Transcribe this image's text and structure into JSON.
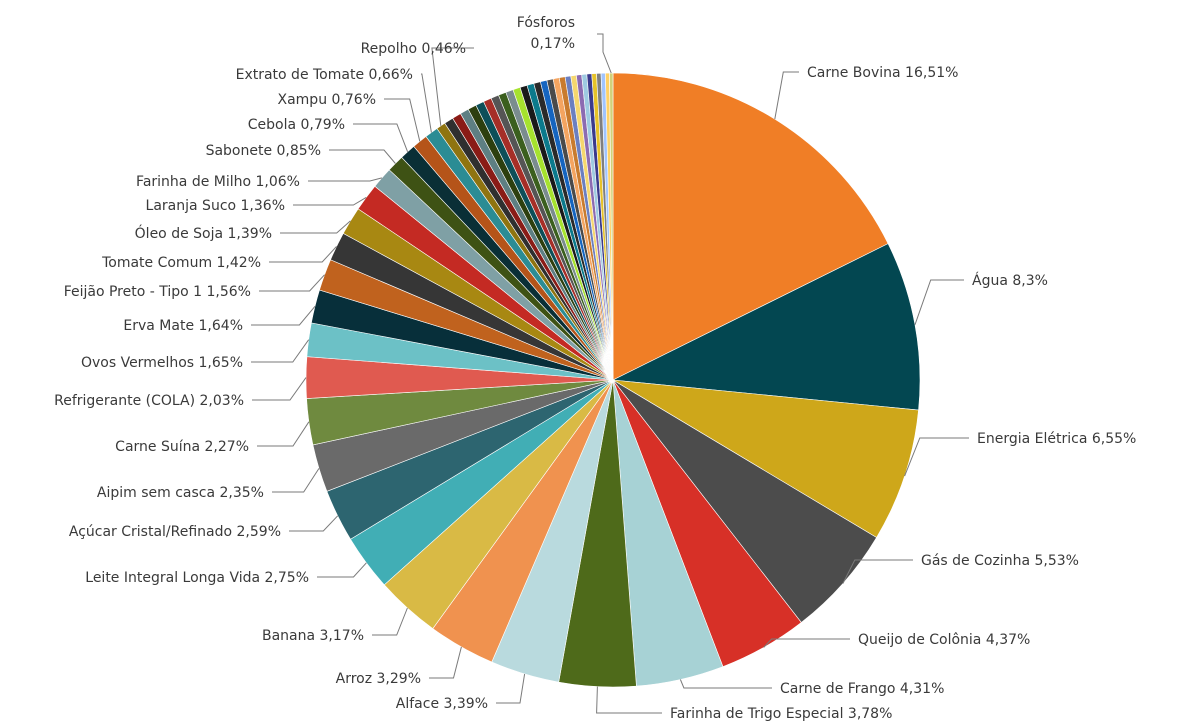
{
  "chart_data": {
    "type": "pie",
    "slices": [
      {
        "label": "Carne Bovina 16,51%",
        "value": 16.51,
        "color": "#F07E26"
      },
      {
        "label": "Água 8,3%",
        "value": 8.3,
        "color": "#034751"
      },
      {
        "label": "Energia Elétrica 6,55%",
        "value": 6.55,
        "color": "#CEA71A"
      },
      {
        "label": "Gás de Cozinha 5,53%",
        "value": 5.53,
        "color": "#4C4C4C"
      },
      {
        "label": "Queijo de Colônia 4,37%",
        "value": 4.37,
        "color": "#D73027"
      },
      {
        "label": "Carne de Frango 4,31%",
        "value": 4.31,
        "color": "#A7D2D5"
      },
      {
        "label": "Farinha de Trigo Especial 3,78%",
        "value": 3.78,
        "color": "#4E6A1A"
      },
      {
        "label": "Alface 3,39%",
        "value": 3.39,
        "color": "#B9DADE"
      },
      {
        "label": "Arroz 3,29%",
        "value": 3.29,
        "color": "#F0924F"
      },
      {
        "label": "Banana 3,17%",
        "value": 3.17,
        "color": "#D9BA45"
      },
      {
        "label": "Leite Integral Longa Vida 2,75%",
        "value": 2.75,
        "color": "#41AEB5"
      },
      {
        "label": "Açúcar Cristal/Refinado 2,59%",
        "value": 2.59,
        "color": "#2D6570"
      },
      {
        "label": "Aipim sem casca 2,35%",
        "value": 2.35,
        "color": "#6A6A6A"
      },
      {
        "label": "Carne Suína 2,27%",
        "value": 2.27,
        "color": "#6F8A3F"
      },
      {
        "label": "Refrigerante (COLA) 2,03%",
        "value": 2.03,
        "color": "#E05A50"
      },
      {
        "label": "Ovos Vermelhos 1,65%",
        "value": 1.65,
        "color": "#6CC1C6"
      },
      {
        "label": "Erva Mate 1,64%",
        "value": 1.64,
        "color": "#072F3A"
      },
      {
        "label": "Feijão Preto - Tipo 1 1,56%",
        "value": 1.56,
        "color": "#C0621E"
      },
      {
        "label": "Tomate Comum 1,42%",
        "value": 1.42,
        "color": "#363636"
      },
      {
        "label": "Óleo de Soja 1,39%",
        "value": 1.39,
        "color": "#A88812"
      },
      {
        "label": "Laranja Suco 1,36%",
        "value": 1.36,
        "color": "#C42A23"
      },
      {
        "label": "Farinha de Milho 1,06%",
        "value": 1.06,
        "color": "#7FA0A5"
      },
      {
        "label": "Sabonete 0,85%",
        "value": 0.85,
        "color": "#3E5214"
      },
      {
        "label": "Cebola 0,79%",
        "value": 0.79,
        "color": "#0A2F36"
      },
      {
        "label": "Xampu 0,76%",
        "value": 0.76,
        "color": "#B55419"
      },
      {
        "label": "Extrato de Tomate 0,66%",
        "value": 0.66,
        "color": "#2B8C94"
      },
      {
        "label": "Repolho 0,46%",
        "value": 0.46,
        "color": "#8F7410"
      },
      {
        "label": "",
        "value": 0.45,
        "color": "#2F2F2F"
      },
      {
        "label": "",
        "value": 0.44,
        "color": "#8A1B16"
      },
      {
        "label": "",
        "value": 0.43,
        "color": "#5E7F83"
      },
      {
        "label": "",
        "value": 0.42,
        "color": "#2D3F0F"
      },
      {
        "label": "",
        "value": 0.41,
        "color": "#0D4F59"
      },
      {
        "label": "",
        "value": 0.4,
        "color": "#A62E27"
      },
      {
        "label": "",
        "value": 0.39,
        "color": "#555555"
      },
      {
        "label": "",
        "value": 0.38,
        "color": "#3B5F1E"
      },
      {
        "label": "",
        "value": 0.37,
        "color": "#7A8C8E"
      },
      {
        "label": "",
        "value": 0.36,
        "color": "#A6E22E"
      },
      {
        "label": "",
        "value": 0.35,
        "color": "#1A1A1A"
      },
      {
        "label": "",
        "value": 0.34,
        "color": "#0B7A8C"
      },
      {
        "label": "",
        "value": 0.33,
        "color": "#2A2A2A"
      },
      {
        "label": "",
        "value": 0.32,
        "color": "#1565C0"
      },
      {
        "label": "",
        "value": 0.31,
        "color": "#4A4A4A"
      },
      {
        "label": "",
        "value": 0.3,
        "color": "#F4A460"
      },
      {
        "label": "",
        "value": 0.29,
        "color": "#C97B2E"
      },
      {
        "label": "",
        "value": 0.28,
        "color": "#6B7FC0"
      },
      {
        "label": "",
        "value": 0.27,
        "color": "#F5D76E"
      },
      {
        "label": "",
        "value": 0.26,
        "color": "#8C6BB1"
      },
      {
        "label": "",
        "value": 0.25,
        "color": "#9ECAE1"
      },
      {
        "label": "",
        "value": 0.24,
        "color": "#3A3A8C"
      },
      {
        "label": "",
        "value": 0.23,
        "color": "#E6C229"
      },
      {
        "label": "",
        "value": 0.22,
        "color": "#7F7F7F"
      },
      {
        "label": "",
        "value": 0.21,
        "color": "#A0C4FF"
      },
      {
        "label": "",
        "value": 0.2,
        "color": "#FFD166"
      },
      {
        "label": "Fósforos 0,17%",
        "value": 0.17,
        "color": "#D1D17A"
      }
    ]
  }
}
